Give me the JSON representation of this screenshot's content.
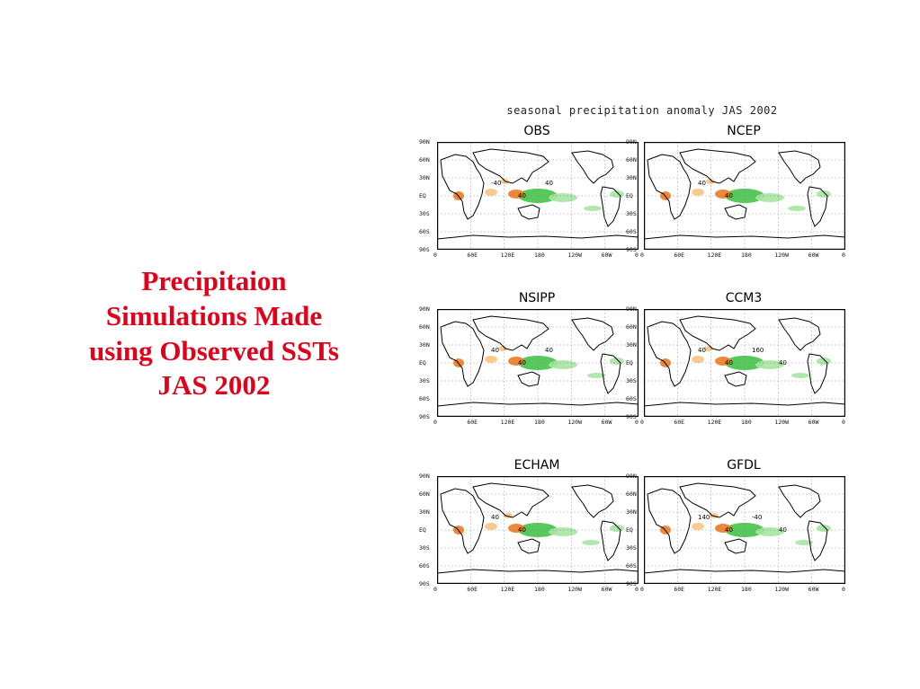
{
  "slide": {
    "title_lines": [
      "Precipitaion",
      "Simulations Made",
      "using Observed SSTs",
      "JAS 2002"
    ]
  },
  "figure": {
    "title": "seasonal precipitation anomaly JAS 2002",
    "lat_labels": [
      "90N",
      "60N",
      "30N",
      "EQ",
      "30S",
      "60S",
      "90S"
    ],
    "lon_labels": [
      "0",
      "60E",
      "120E",
      "180",
      "120W",
      "60W",
      "0"
    ],
    "panels": [
      {
        "label": "OBS",
        "contour_labels": [
          "-40",
          "40",
          "40"
        ]
      },
      {
        "label": "NCEP",
        "contour_labels": [
          "40",
          "40"
        ]
      },
      {
        "label": "NSIPP",
        "contour_labels": [
          "40",
          "40",
          "40"
        ]
      },
      {
        "label": "CCM3",
        "contour_labels": [
          "40",
          "40",
          "160",
          "40"
        ]
      },
      {
        "label": "ECHAM",
        "contour_labels": [
          "40",
          "40"
        ]
      },
      {
        "label": "GFDL",
        "contour_labels": [
          "140",
          "40",
          "-40",
          "40"
        ]
      }
    ],
    "colors": {
      "title": "#e3001b",
      "positive_anomaly": "#44c24a",
      "positive_anomaly_light": "#a7e6a3",
      "negative_anomaly": "#ee7a22",
      "negative_anomaly_light": "#f7c57f",
      "coastline": "#000000"
    }
  }
}
